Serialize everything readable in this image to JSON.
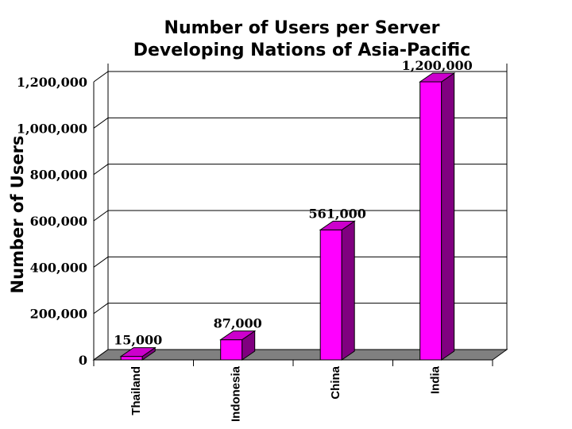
{
  "chart_data": {
    "type": "bar",
    "title": "Number of Users per Server",
    "subtitle": "Developing Nations of Asia-Pacific",
    "xlabel": "",
    "ylabel": "Number of Users",
    "categories": [
      "Thailand",
      "Indonesia",
      "China",
      "India"
    ],
    "values": [
      15000,
      87000,
      561000,
      1200000
    ],
    "data_labels": [
      "15,000",
      "87,000",
      "561,000",
      "1,200,000"
    ],
    "ylim": [
      0,
      1200000
    ],
    "yticks": [
      0,
      200000,
      400000,
      600000,
      800000,
      1000000,
      1200000
    ],
    "ytick_labels": [
      "0",
      "200,000",
      "400,000",
      "600,000",
      "800,000",
      "1,000,000",
      "1,200,000"
    ],
    "grid": true,
    "style": "3d",
    "colors": {
      "bar_front": "#ff00ff",
      "bar_side": "#800080",
      "bar_top": "#cc00cc",
      "floor": "#808080"
    }
  }
}
